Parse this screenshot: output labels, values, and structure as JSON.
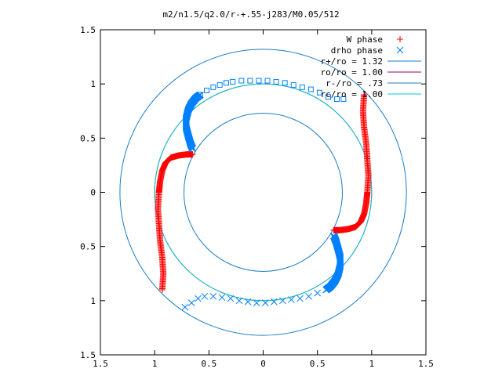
{
  "chart_data": {
    "type": "scatter",
    "title": "m2/n1.5/q2.0/r-+.55-j283/M0.05/512",
    "xlabel": "",
    "ylabel": "",
    "xlim": [
      -1.5,
      1.5
    ],
    "ylim": [
      -1.5,
      1.5
    ],
    "x_ticks": [
      -1.5,
      -1,
      -0.5,
      0,
      0.5,
      1,
      1.5
    ],
    "y_ticks": [
      -1.5,
      -1,
      -0.5,
      0,
      0.5,
      1,
      1.5
    ],
    "x_tick_labels": [
      "1.5",
      "1",
      "0.5",
      "0",
      "0.5",
      "1",
      "1.5"
    ],
    "y_tick_labels": [
      "1.5",
      "1",
      "0.5",
      "0",
      "0.5",
      "1",
      "1.5"
    ],
    "grid": false,
    "legend_position": "top-right",
    "series": [
      {
        "name": "W phase",
        "kind": "points",
        "marker": "plus",
        "color": "#ff0000",
        "branches": [
          {
            "x": [
              0.93,
              0.92,
              0.93,
              0.95,
              0.96,
              0.97,
              0.96,
              0.95,
              0.93,
              0.9,
              0.85,
              0.78,
              0.7,
              0.65
            ],
            "y": [
              0.9,
              0.75,
              0.6,
              0.45,
              0.3,
              0.15,
              0.0,
              -0.1,
              -0.2,
              -0.27,
              -0.32,
              -0.34,
              -0.35,
              -0.35
            ]
          },
          {
            "x": [
              -0.93,
              -0.92,
              -0.93,
              -0.95,
              -0.96,
              -0.97,
              -0.96,
              -0.95,
              -0.93,
              -0.9,
              -0.85,
              -0.78,
              -0.7,
              -0.65
            ],
            "y": [
              -0.9,
              -0.75,
              -0.6,
              -0.45,
              -0.3,
              -0.15,
              0.0,
              0.1,
              0.2,
              0.27,
              0.32,
              0.34,
              0.35,
              0.35
            ]
          }
        ]
      },
      {
        "name": "drho phase",
        "kind": "points",
        "marker": "cross",
        "color": "#0080ff",
        "branches": [
          {
            "x": [
              -0.65,
              -0.67,
              -0.69,
              -0.71,
              -0.71,
              -0.69,
              -0.66,
              -0.62,
              -0.58
            ],
            "y": [
              0.4,
              0.45,
              0.52,
              0.6,
              0.68,
              0.76,
              0.82,
              0.87,
              0.9
            ]
          },
          {
            "x": [
              0.65,
              0.67,
              0.69,
              0.71,
              0.71,
              0.69,
              0.66,
              0.62,
              0.58
            ],
            "y": [
              -0.4,
              -0.45,
              -0.52,
              -0.6,
              -0.68,
              -0.76,
              -0.82,
              -0.87,
              -0.9
            ]
          }
        ]
      },
      {
        "name": "",
        "kind": "points",
        "marker": "square",
        "color": "#0080ff",
        "branches": [
          {
            "x": [
              -0.58,
              -0.52,
              -0.46,
              -0.4,
              -0.34,
              -0.28,
              -0.2,
              -0.12,
              -0.04,
              0.04,
              0.12,
              0.2,
              0.28,
              0.36,
              0.44,
              0.52,
              0.6,
              0.68,
              0.74
            ],
            "y": [
              0.9,
              0.94,
              0.97,
              0.99,
              1.01,
              1.02,
              1.03,
              1.03,
              1.03,
              1.03,
              1.02,
              1.01,
              0.99,
              0.97,
              0.95,
              0.92,
              0.88,
              0.86,
              0.86
            ]
          }
        ]
      },
      {
        "name": "",
        "kind": "points",
        "marker": "cross",
        "color": "#0080ff",
        "branches": [
          {
            "x": [
              -0.72,
              -0.66,
              -0.6,
              -0.54,
              -0.46,
              -0.38,
              -0.3,
              -0.22,
              -0.14,
              -0.06,
              0.02,
              0.1,
              0.18,
              0.26,
              0.34,
              0.42,
              0.5,
              0.58
            ],
            "y": [
              -1.06,
              -1.02,
              -0.98,
              -0.96,
              -0.96,
              -0.97,
              -0.98,
              -1.0,
              -1.01,
              -1.02,
              -1.02,
              -1.01,
              -1.0,
              -0.99,
              -0.98,
              -0.96,
              -0.93,
              -0.9
            ]
          }
        ]
      },
      {
        "name": "r+/ro = 1.32",
        "kind": "circle",
        "radius": 1.32,
        "color": "#1a7dc8"
      },
      {
        "name": "ro/ro = 1.00",
        "kind": "circle",
        "radius": 1.0,
        "color": "#990066"
      },
      {
        "name": "r-/ro = .73",
        "kind": "circle",
        "radius": 0.73,
        "color": "#1a7dc8"
      },
      {
        "name": "rc/ro = 1.00",
        "kind": "circle",
        "radius": 1.0,
        "color": "#00cccc"
      }
    ]
  }
}
